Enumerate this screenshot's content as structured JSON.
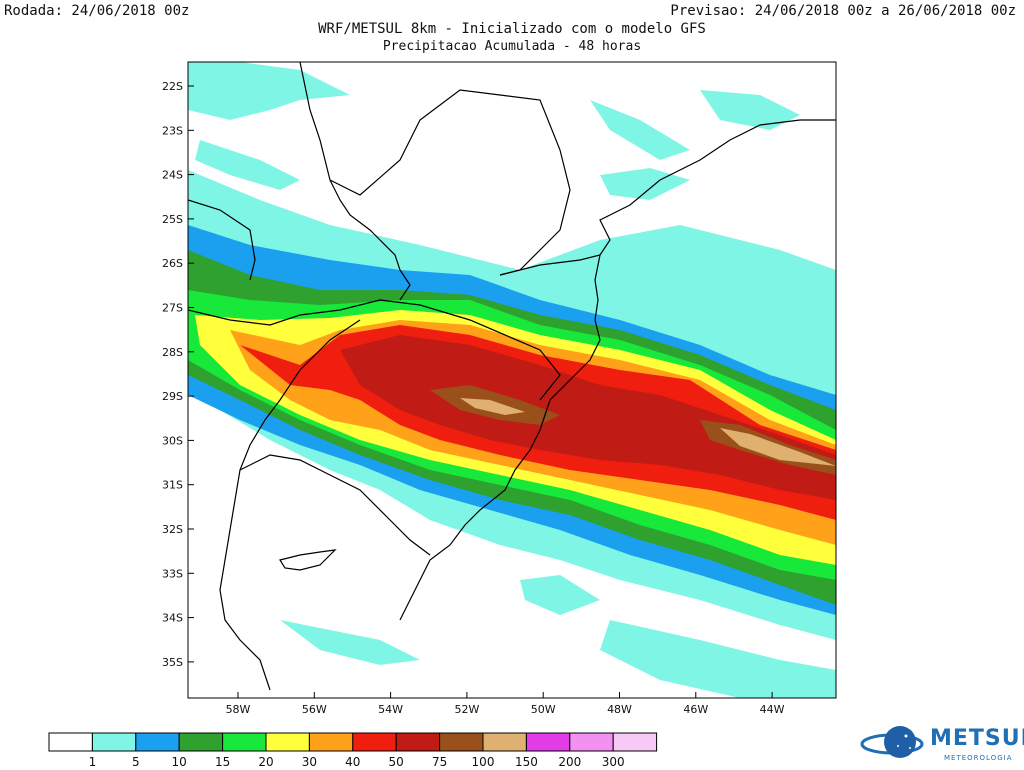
{
  "header": {
    "run_label": "Rodada: 24/06/2018 00z",
    "forecast_label": "Previsao: 24/06/2018 00z a 26/06/2018 00z",
    "title": "WRF/METSUL 8km - Inicializado com o modelo GFS",
    "subtitle": "Precipitacao Acumulada - 48 horas"
  },
  "map": {
    "lat_ticks": [
      "22S",
      "23S",
      "24S",
      "25S",
      "26S",
      "27S",
      "28S",
      "29S",
      "30S",
      "31S",
      "32S",
      "33S",
      "34S",
      "35S"
    ],
    "lon_ticks": [
      "58W",
      "56W",
      "54W",
      "52W",
      "50W",
      "48W",
      "46W",
      "44W"
    ]
  },
  "legend": {
    "colors": [
      "#ffffff",
      "#7ff5e6",
      "#1aa0ef",
      "#2ea12e",
      "#17e83a",
      "#ffff3c",
      "#ffa21a",
      "#f01e0f",
      "#c01b14",
      "#99501a",
      "#e0b070",
      "#e13ce6",
      "#f291f2",
      "#f7c9f7"
    ],
    "labels": [
      "1",
      "5",
      "10",
      "15",
      "20",
      "30",
      "40",
      "50",
      "75",
      "100",
      "150",
      "200",
      "300"
    ]
  },
  "branding": {
    "logo_text": "METSUL",
    "logo_subtext": "METEOROLOGIA",
    "logo_color": "#1f6fb5"
  }
}
